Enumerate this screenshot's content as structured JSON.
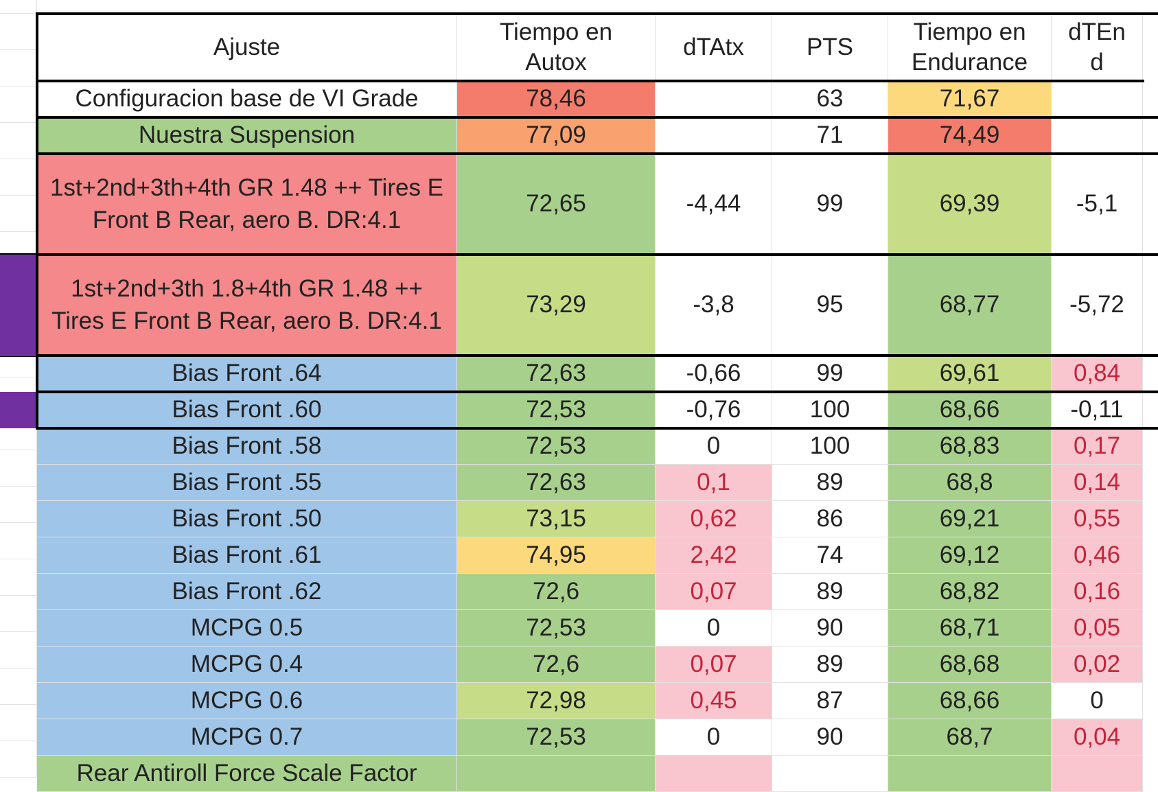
{
  "colors": {
    "white": "#ffffff",
    "red_strong": "#f47c6c",
    "orange": "#f9a16f",
    "yellow": "#fcd97c",
    "red_soft": "#f4888a",
    "green": "#a8d08d",
    "green_light": "#c6dc87",
    "blue": "#9fc5e8",
    "pink": "#f9c6cf",
    "red_text": "#c2253a",
    "purple": "#7030a0"
  },
  "columns": [
    "Ajuste",
    "Tiempo en Autox",
    "dTAtx",
    "PTS",
    "Tiempo en Endurance",
    "dTEnd"
  ],
  "header": {
    "ajuste": "Ajuste",
    "autox_line1": "Tiempo en",
    "autox_line2": "Autox",
    "dtatx": "dTAtx",
    "pts": "PTS",
    "endurance_line1": "Tiempo en",
    "endurance_line2": "Endurance",
    "dtend_line1": "dTEn",
    "dtend_line2": "d"
  },
  "rows": [
    {
      "ajuste": "Configuracion base de VI Grade",
      "autox": "78,46",
      "dtatx": "",
      "pts": "63",
      "endurance": "71,67",
      "dtend": "",
      "bg": [
        "white",
        "red_strong",
        "white",
        "white",
        "yellow",
        "white"
      ],
      "red": [
        false,
        false,
        false,
        false,
        false,
        false
      ]
    },
    {
      "ajuste": "Nuestra Suspension",
      "autox": "77,09",
      "dtatx": "",
      "pts": "71",
      "endurance": "74,49",
      "dtend": "",
      "bg": [
        "green",
        "orange",
        "white",
        "white",
        "red_strong",
        "white"
      ],
      "red": [
        false,
        false,
        false,
        false,
        false,
        false
      ]
    },
    {
      "ajuste": "1st+2nd+3th+4th GR 1.48 ++ Tires E Front B Rear, aero B. DR:4.1",
      "autox": "72,65",
      "dtatx": "-4,44",
      "pts": "99",
      "endurance": "69,39",
      "dtend": "-5,1",
      "bg": [
        "red_soft",
        "green",
        "white",
        "white",
        "green_light",
        "white"
      ],
      "red": [
        false,
        false,
        false,
        false,
        false,
        false
      ]
    },
    {
      "ajuste": "1st+2nd+3th 1.8+4th GR 1.48 ++ Tires E Front B Rear, aero B. DR:4.1",
      "autox": "73,29",
      "dtatx": "-3,8",
      "pts": "95",
      "endurance": "68,77",
      "dtend": "-5,72",
      "bg": [
        "red_soft",
        "green_light",
        "white",
        "white",
        "green",
        "white"
      ],
      "red": [
        false,
        false,
        false,
        false,
        false,
        false
      ]
    },
    {
      "ajuste": "Bias Front .64",
      "autox": "72,63",
      "dtatx": "-0,66",
      "pts": "99",
      "endurance": "69,61",
      "dtend": "0,84",
      "bg": [
        "blue",
        "green",
        "white",
        "white",
        "green_light",
        "pink"
      ],
      "red": [
        false,
        false,
        false,
        false,
        false,
        true
      ]
    },
    {
      "ajuste": "Bias Front .60",
      "autox": "72,53",
      "dtatx": "-0,76",
      "pts": "100",
      "endurance": "68,66",
      "dtend": "-0,11",
      "bg": [
        "blue",
        "green",
        "white",
        "white",
        "green",
        "white"
      ],
      "red": [
        false,
        false,
        false,
        false,
        false,
        false
      ]
    },
    {
      "ajuste": "Bias Front .58",
      "autox": "72,53",
      "dtatx": "0",
      "pts": "100",
      "endurance": "68,83",
      "dtend": "0,17",
      "bg": [
        "blue",
        "green",
        "white",
        "white",
        "green",
        "pink"
      ],
      "red": [
        false,
        false,
        false,
        false,
        false,
        true
      ]
    },
    {
      "ajuste": "Bias Front .55",
      "autox": "72,63",
      "dtatx": "0,1",
      "pts": "89",
      "endurance": "68,8",
      "dtend": "0,14",
      "bg": [
        "blue",
        "green",
        "pink",
        "white",
        "green",
        "pink"
      ],
      "red": [
        false,
        false,
        true,
        false,
        false,
        true
      ]
    },
    {
      "ajuste": "Bias Front .50",
      "autox": "73,15",
      "dtatx": "0,62",
      "pts": "86",
      "endurance": "69,21",
      "dtend": "0,55",
      "bg": [
        "blue",
        "green_light",
        "pink",
        "white",
        "green",
        "pink"
      ],
      "red": [
        false,
        false,
        true,
        false,
        false,
        true
      ]
    },
    {
      "ajuste": "Bias Front .61",
      "autox": "74,95",
      "dtatx": "2,42",
      "pts": "74",
      "endurance": "69,12",
      "dtend": "0,46",
      "bg": [
        "blue",
        "yellow",
        "pink",
        "white",
        "green",
        "pink"
      ],
      "red": [
        false,
        false,
        true,
        false,
        false,
        true
      ]
    },
    {
      "ajuste": "Bias Front .62",
      "autox": "72,6",
      "dtatx": "0,07",
      "pts": "89",
      "endurance": "68,82",
      "dtend": "0,16",
      "bg": [
        "blue",
        "green",
        "pink",
        "white",
        "green",
        "pink"
      ],
      "red": [
        false,
        false,
        true,
        false,
        false,
        true
      ]
    },
    {
      "ajuste": "MCPG 0.5",
      "autox": "72,53",
      "dtatx": "0",
      "pts": "90",
      "endurance": "68,71",
      "dtend": "0,05",
      "bg": [
        "blue",
        "green",
        "white",
        "white",
        "green",
        "pink"
      ],
      "red": [
        false,
        false,
        false,
        false,
        false,
        true
      ]
    },
    {
      "ajuste": "MCPG 0.4",
      "autox": "72,6",
      "dtatx": "0,07",
      "pts": "89",
      "endurance": "68,68",
      "dtend": "0,02",
      "bg": [
        "blue",
        "green",
        "pink",
        "white",
        "green",
        "pink"
      ],
      "red": [
        false,
        false,
        true,
        false,
        false,
        true
      ]
    },
    {
      "ajuste": "MCPG 0.6",
      "autox": "72,98",
      "dtatx": "0,45",
      "pts": "87",
      "endurance": "68,66",
      "dtend": "0",
      "bg": [
        "blue",
        "green_light",
        "pink",
        "white",
        "green",
        "white"
      ],
      "red": [
        false,
        false,
        true,
        false,
        false,
        false
      ]
    },
    {
      "ajuste": "MCPG 0.7",
      "autox": "72,53",
      "dtatx": "0",
      "pts": "90",
      "endurance": "68,7",
      "dtend": "0,04",
      "bg": [
        "blue",
        "green",
        "white",
        "white",
        "green",
        "pink"
      ],
      "red": [
        false,
        false,
        false,
        false,
        false,
        true
      ]
    },
    {
      "ajuste": "Rear Antiroll Force Scale Factor",
      "autox": "",
      "dtatx": "",
      "pts": "",
      "endurance": "",
      "dtend": "",
      "bg": [
        "green",
        "green",
        "pink",
        "white",
        "green",
        "pink"
      ],
      "red": [
        false,
        false,
        false,
        false,
        false,
        false
      ]
    }
  ]
}
